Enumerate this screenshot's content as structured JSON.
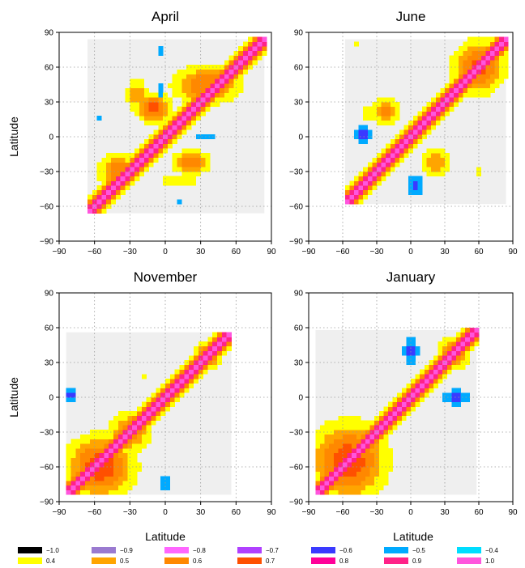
{
  "chart_data": {
    "type": "heatmap",
    "grid": true,
    "x_ticks": [
      "−90",
      "−60",
      "−30",
      "0",
      "30",
      "60",
      "90"
    ],
    "y_ticks": [
      "90",
      "60",
      "30",
      "0",
      "−30",
      "−60",
      "−90"
    ],
    "xlabel": "Latitude",
    "ylabel": "Latitude",
    "xlim": [
      -90,
      90
    ],
    "ylim": [
      -90,
      90
    ],
    "panels": [
      {
        "title": "April",
        "domain": [
          -66,
          84
        ],
        "diagonal_strength": 0.97,
        "diagonal_width": 11,
        "blobs": [
          {
            "x": -10,
            "y": 25,
            "sx": 14,
            "sy": 12,
            "v": 0.8
          },
          {
            "x": 35,
            "y": 45,
            "sx": 28,
            "sy": 16,
            "v": 0.75
          },
          {
            "x": -40,
            "y": -30,
            "sx": 16,
            "sy": 16,
            "v": 0.72
          },
          {
            "x": 22,
            "y": -22,
            "sx": 16,
            "sy": 10,
            "v": 0.72
          },
          {
            "x": -24,
            "y": 36,
            "sx": 10,
            "sy": 16,
            "v": 0.62
          },
          {
            "x": 12,
            "y": -38,
            "sx": 20,
            "sy": 8,
            "v": 0.5
          },
          {
            "x": 0,
            "y": 0,
            "sx": 6,
            "sy": 6,
            "v": 0.9
          },
          {
            "x": -3,
            "y": 40,
            "sx": 3,
            "sy": 9,
            "v": -0.5
          },
          {
            "x": -4,
            "y": 75,
            "sx": 3,
            "sy": 5,
            "v": -0.5
          },
          {
            "x": 34,
            "y": 0,
            "sx": 14,
            "sy": 3,
            "v": -0.5
          },
          {
            "x": 12,
            "y": -55,
            "sx": 2,
            "sy": 3,
            "v": -0.5
          },
          {
            "x": -56,
            "y": 16,
            "sx": 2,
            "sy": 2,
            "v": -0.5
          }
        ]
      },
      {
        "title": "June",
        "domain": [
          -58,
          84
        ],
        "diagonal_strength": 0.97,
        "diagonal_width": 11,
        "blobs": [
          {
            "x": 60,
            "y": 60,
            "sx": 22,
            "sy": 22,
            "v": 0.78
          },
          {
            "x": -22,
            "y": 22,
            "sx": 12,
            "sy": 12,
            "v": 0.7
          },
          {
            "x": 22,
            "y": -22,
            "sx": 14,
            "sy": 12,
            "v": 0.65
          },
          {
            "x": -35,
            "y": 20,
            "sx": 10,
            "sy": 10,
            "v": 0.5
          },
          {
            "x": -48,
            "y": 80,
            "sx": 6,
            "sy": 4,
            "v": 0.45
          },
          {
            "x": 60,
            "y": -30,
            "sx": 14,
            "sy": 5,
            "v": 0.45
          },
          {
            "x": 78,
            "y": -40,
            "sx": 3,
            "sy": 12,
            "v": 0.45
          },
          {
            "x": 0,
            "y": 0,
            "sx": 6,
            "sy": 6,
            "v": 0.9
          },
          {
            "x": -42,
            "y": 2,
            "sx": 9,
            "sy": 8,
            "v": -0.6
          },
          {
            "x": 4,
            "y": -42,
            "sx": 6,
            "sy": 11,
            "v": -0.6
          }
        ]
      },
      {
        "title": "November",
        "domain": [
          -84,
          56
        ],
        "diagonal_strength": 0.97,
        "diagonal_width": 11,
        "blobs": [
          {
            "x": -55,
            "y": -60,
            "sx": 28,
            "sy": 26,
            "v": 0.82
          },
          {
            "x": 35,
            "y": 35,
            "sx": 12,
            "sy": 12,
            "v": 0.72
          },
          {
            "x": -30,
            "y": -30,
            "sx": 16,
            "sy": 16,
            "v": 0.75
          },
          {
            "x": -18,
            "y": 18,
            "sx": 5,
            "sy": 5,
            "v": 0.45
          },
          {
            "x": 16,
            "y": -16,
            "sx": 5,
            "sy": 5,
            "v": 0.45
          },
          {
            "x": 0,
            "y": 0,
            "sx": 6,
            "sy": 6,
            "v": 0.9
          },
          {
            "x": -80,
            "y": 2,
            "sx": 6,
            "sy": 5,
            "v": -0.6
          },
          {
            "x": 0,
            "y": -75,
            "sx": 5,
            "sy": 8,
            "v": -0.6
          }
        ]
      },
      {
        "title": "January",
        "domain": [
          -84,
          58
        ],
        "diagonal_strength": 0.97,
        "diagonal_width": 11,
        "blobs": [
          {
            "x": -55,
            "y": -55,
            "sx": 32,
            "sy": 32,
            "v": 0.82
          },
          {
            "x": 38,
            "y": 38,
            "sx": 14,
            "sy": 14,
            "v": 0.75
          },
          {
            "x": 0,
            "y": 0,
            "sx": 6,
            "sy": 6,
            "v": 0.9
          },
          {
            "x": 0,
            "y": 40,
            "sx": 7,
            "sy": 14,
            "v": -0.62
          },
          {
            "x": 40,
            "y": 0,
            "sx": 14,
            "sy": 7,
            "v": -0.62
          }
        ]
      }
    ],
    "legend": [
      {
        "label": "−1.0",
        "color": "#000000"
      },
      {
        "label": "−0.9",
        "color": "#9a7ad0"
      },
      {
        "label": "−0.8",
        "color": "#ff66ff"
      },
      {
        "label": "−0.7",
        "color": "#b040ff"
      },
      {
        "label": "−0.6",
        "color": "#3a3aff"
      },
      {
        "label": "−0.5",
        "color": "#00aaff"
      },
      {
        "label": "−0.4",
        "color": "#00ddff"
      },
      {
        "label": "0.4",
        "color": "#ffff00"
      },
      {
        "label": "0.5",
        "color": "#ffa500"
      },
      {
        "label": "0.6",
        "color": "#ff8800"
      },
      {
        "label": "0.7",
        "color": "#ff5000"
      },
      {
        "label": "0.8",
        "color": "#ff0099"
      },
      {
        "label": "0.9",
        "color": "#ff2288"
      },
      {
        "label": "1.0",
        "color": "#ff55dd"
      }
    ]
  }
}
